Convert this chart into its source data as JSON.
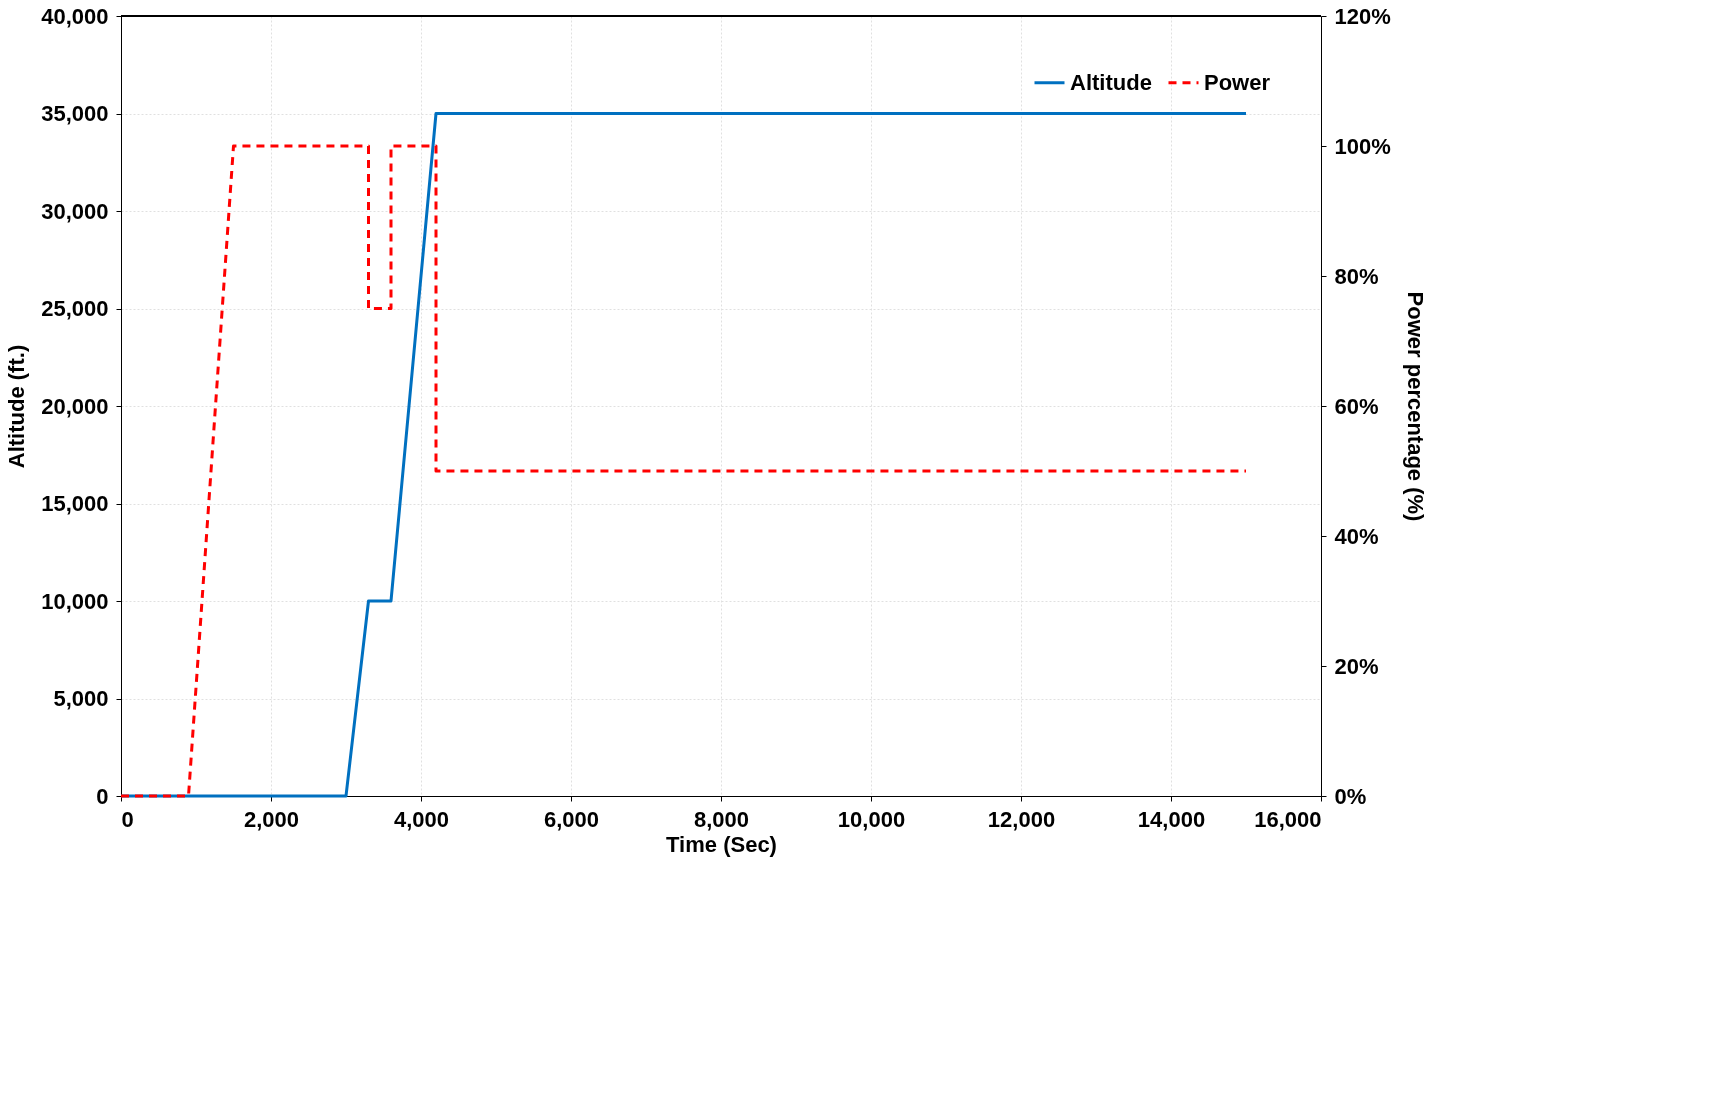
{
  "chart_data": {
    "type": "line",
    "xlabel": "Time (Sec)",
    "ylabel": "Altitude (ft.)",
    "y2label": "Power percentage (%)",
    "xlim": [
      0,
      16000
    ],
    "ylim": [
      0,
      40000
    ],
    "y2lim": [
      0,
      120
    ],
    "xticks": [
      0,
      {
        "value": 2000,
        "label": "2,000"
      },
      {
        "value": 4000,
        "label": "4,000"
      },
      {
        "value": 6000,
        "label": "6,000"
      },
      {
        "value": 8000,
        "label": "8,000"
      },
      {
        "value": 10000,
        "label": "10,000"
      },
      {
        "value": 12000,
        "label": "12,000"
      },
      {
        "value": 14000,
        "label": "14,000"
      },
      {
        "value": 16000,
        "label": "16,000"
      }
    ],
    "yticks": [
      0,
      {
        "value": 5000,
        "label": "5,000"
      },
      {
        "value": 10000,
        "label": "10,000"
      },
      {
        "value": 15000,
        "label": "15,000"
      },
      {
        "value": 20000,
        "label": "20,000"
      },
      {
        "value": 25000,
        "label": "25,000"
      },
      {
        "value": 30000,
        "label": "30,000"
      },
      {
        "value": 35000,
        "label": "35,000"
      },
      {
        "value": 40000,
        "label": "40,000"
      }
    ],
    "y2ticks": [
      {
        "value": 0,
        "label": "0%"
      },
      {
        "value": 20,
        "label": "20%"
      },
      {
        "value": 40,
        "label": "40%"
      },
      {
        "value": 60,
        "label": "60%"
      },
      {
        "value": 80,
        "label": "80%"
      },
      {
        "value": 100,
        "label": "100%"
      },
      {
        "value": 120,
        "label": "120%"
      }
    ],
    "grid": true,
    "legend": "top right",
    "marker": "none",
    "series": [
      {
        "name": "Altitude",
        "color": "#0070c0",
        "line_style": "solid",
        "x": [
          0,
          3000,
          3300,
          3600,
          4200,
          15000
        ],
        "values": [
          0,
          0,
          10000,
          10000,
          35000,
          35000
        ]
      },
      {
        "name": "Power",
        "color": "#ff0000",
        "line_style": "dashed",
        "axis": "y2",
        "x": [
          0,
          900,
          1500,
          3300,
          3300,
          3600,
          3600,
          4200,
          4200,
          15000
        ],
        "values": [
          0,
          0,
          100,
          100,
          75,
          75,
          100,
          100,
          50,
          50
        ]
      }
    ]
  }
}
